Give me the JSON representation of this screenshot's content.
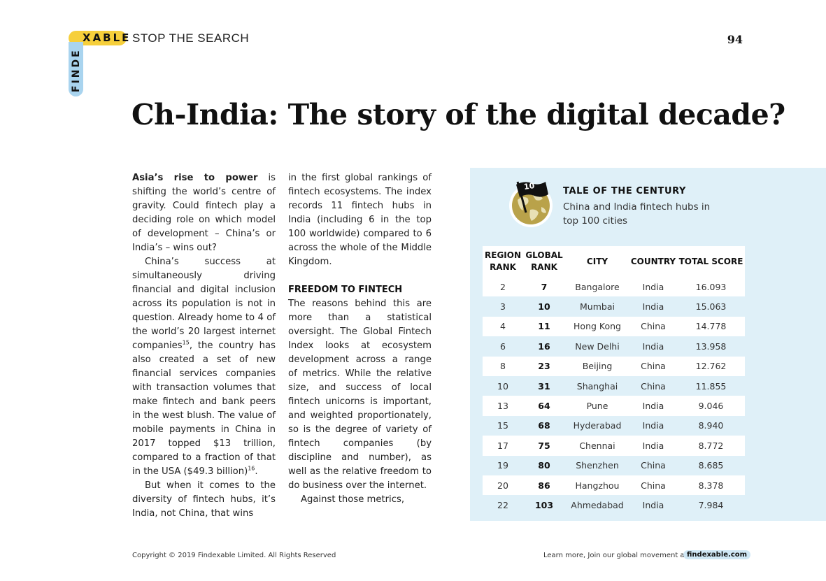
{
  "header": {
    "logo_horizontal": "XABLE",
    "logo_vertical": "FINDE",
    "section_label": "STOP THE SEARCH",
    "page_number": "94"
  },
  "article": {
    "title": "Ch-India: The story of the digital decade?",
    "col1": {
      "lead": "Asia’s rise to power",
      "p1_rest": " is shifting the world’s centre of gravity. Could fintech play a deciding role on which model of development – China’s or India’s – wins out?",
      "p2_before": "China’s success at simultaneously driving financial and digital inclusion across its population is not in question. Already home to 4 of the world’s 20 largest internet companies",
      "p2_ref": "15",
      "p2_after": ", the country has also created a set of new financial services companies with transaction volumes that make fintech and bank peers in the west blush. The value of mobile payments in China in 2017 topped $13 trillion, compared to a fraction of that in the USA ($49.3 billion)",
      "p2_ref2": "16",
      "p2_end": ".",
      "p3": "But when it comes to the diversity of fintech hubs, it’s India, not China, that wins"
    },
    "col2": {
      "p1": "in the first global rankings of fintech ecosystems. The index records 11 fintech hubs in India (including 6 in the top 100 worldwide) compared to 6 across the whole of the Middle Kingdom.",
      "subhead": "FREEDOM TO FINTECH",
      "p2": "The reasons behind this are more than a statistical oversight. The Global Fintech Index looks at ecosystem development across a range of metrics. While the relative size, and success of local fintech unicorns is important, and weighted proportionately, so is the degree of variety of fintech companies (by discipline and number), as well as the relative freedom to do business over the internet.",
      "p3": "Against those metrics,"
    }
  },
  "panel": {
    "badge_number": "10",
    "title": "TALE OF THE CENTURY",
    "subtitle": "China and India fintech hubs in top 100 cities",
    "table": {
      "headers": {
        "region_rank": "REGION RANK",
        "global_rank": "GLOBAL RANK",
        "city": "CITY",
        "country": "COUNTRY",
        "total_score": "TOTAL SCORE"
      },
      "rows": [
        {
          "region_rank": "2",
          "global_rank": "7",
          "city": "Bangalore",
          "country": "India",
          "total_score": "16.093"
        },
        {
          "region_rank": "3",
          "global_rank": "10",
          "city": "Mumbai",
          "country": "India",
          "total_score": "15.063"
        },
        {
          "region_rank": "4",
          "global_rank": "11",
          "city": "Hong Kong",
          "country": "China",
          "total_score": "14.778"
        },
        {
          "region_rank": "6",
          "global_rank": "16",
          "city": "New Delhi",
          "country": "India",
          "total_score": "13.958"
        },
        {
          "region_rank": "8",
          "global_rank": "23",
          "city": "Beijing",
          "country": "China",
          "total_score": "12.762"
        },
        {
          "region_rank": "10",
          "global_rank": "31",
          "city": "Shanghai",
          "country": "China",
          "total_score": "11.855"
        },
        {
          "region_rank": "13",
          "global_rank": "64",
          "city": "Pune",
          "country": "India",
          "total_score": "9.046"
        },
        {
          "region_rank": "15",
          "global_rank": "68",
          "city": "Hyderabad",
          "country": "India",
          "total_score": "8.940"
        },
        {
          "region_rank": "17",
          "global_rank": "75",
          "city": "Chennai",
          "country": "India",
          "total_score": "8.772"
        },
        {
          "region_rank": "19",
          "global_rank": "80",
          "city": "Shenzhen",
          "country": "China",
          "total_score": "8.685"
        },
        {
          "region_rank": "20",
          "global_rank": "86",
          "city": "Hangzhou",
          "country": "China",
          "total_score": "8.378"
        },
        {
          "region_rank": "22",
          "global_rank": "103",
          "city": "Ahmedabad",
          "country": "India",
          "total_score": "7.984"
        }
      ]
    }
  },
  "footer": {
    "copyright": "Copyright © 2019 Findexable Limited. All Rights Reserved",
    "learn_more": "Learn more, Join our global movement at",
    "link_text": "findexable.com"
  },
  "colors": {
    "brand_yellow": "#f6cf3b",
    "brand_blue": "#a9d4ef",
    "panel_bg": "#dff0f8",
    "globe_gold": "#b9a24a"
  }
}
